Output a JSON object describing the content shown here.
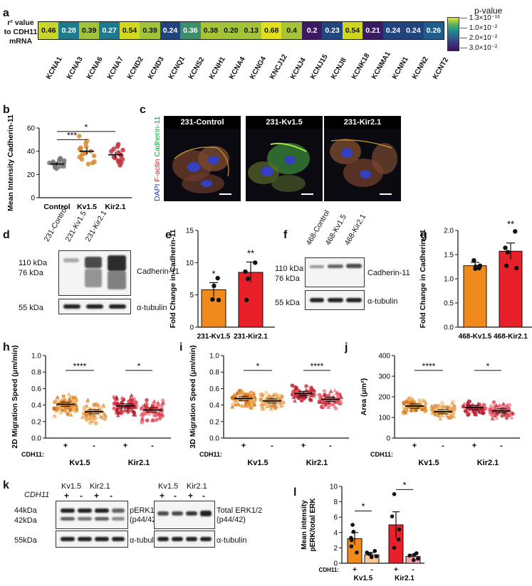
{
  "panels": {
    "a": "a",
    "b": "b",
    "c": "c",
    "d": "d",
    "e": "e",
    "f": "f",
    "g": "g",
    "h": "h",
    "i": "i",
    "j": "j",
    "k": "k",
    "l": "l"
  },
  "heatmap": {
    "row_label_1": "r² value",
    "row_label_2": "to CDH11",
    "row_label_3": "mRNA",
    "genes": [
      "KCNA1",
      "KCNA3",
      "KCNA6",
      "KCNA7",
      "KCND2",
      "KCND3",
      "KCNQ1",
      "KCNS2",
      "KCNH1",
      "KCNA4",
      "KCNG4",
      "KNCJ12",
      "KCNJ4",
      "KCNJ15",
      "KCNJ8",
      "KCNK18",
      "KCNMA1",
      "KCNN1",
      "KCNN2",
      "KCNT2"
    ],
    "values": [
      "0.46",
      "0.28",
      "0.39",
      "0.27",
      "0.54",
      "0.39",
      "0.24",
      "0.36",
      "0.38",
      "0.20",
      "0.13",
      "0.68",
      "0.4",
      "0.2",
      "0.23",
      "0.54",
      "0.21",
      "0.24",
      "0.24",
      "0.26"
    ],
    "colors": [
      "#c9d52a",
      "#1f7b8c",
      "#9fc33a",
      "#1f7a8f",
      "#d3d81e",
      "#9fc33a",
      "#21447f",
      "#3d8e6b",
      "#a7c437",
      "#9fc33a",
      "#a4c33b",
      "#e2de20",
      "#a7c437",
      "#3e1a63",
      "#23467f",
      "#cfd61e",
      "#3b1b64",
      "#21447f",
      "#21447f",
      "#1f5d8a"
    ],
    "legend_title": "p-value",
    "legend_ticks": [
      "1.3×10⁻¹⁶",
      "1.0×10⁻²",
      "2.0×10⁻²",
      "3.0×10⁻²"
    ]
  },
  "panel_b": {
    "ylabel": "Mean  Intensity Cadherin-11",
    "yticks": [
      "0",
      "20",
      "40",
      "60"
    ],
    "sig": [
      "***",
      "*"
    ],
    "chart_data": {
      "type": "scatter",
      "categories": [
        "Control",
        "Kv1.5",
        "Kir2.1"
      ],
      "ylim": [
        0,
        60
      ],
      "series": [
        {
          "name": "Control",
          "mean": 29,
          "sem": 1.5,
          "values": [
            29,
            30,
            27,
            28,
            33,
            31,
            32,
            29,
            26,
            25,
            30,
            34,
            28,
            31,
            27,
            30,
            29,
            33
          ]
        },
        {
          "name": "Kv1.5",
          "mean": 40,
          "sem": 3,
          "values": [
            53,
            47,
            44,
            42,
            40,
            38,
            36,
            41,
            35,
            33,
            30,
            31,
            43,
            49,
            29,
            37,
            39
          ]
        },
        {
          "name": "Kir2.1",
          "mean": 37,
          "sem": 2.5,
          "values": [
            46,
            44,
            41,
            39,
            37,
            35,
            33,
            32,
            31,
            30,
            28,
            40,
            36,
            42,
            34
          ]
        }
      ],
      "colors": [
        "#777777",
        "#d9892e",
        "#c0303a"
      ]
    }
  },
  "panel_c": {
    "ylabel_dapi": "DAPI",
    "ylabel_factin": "F-actin",
    "ylabel_cad": "Cadherin-11",
    "captions": [
      "231-Control",
      "231-Kv1.5",
      "231-Kir2.1"
    ]
  },
  "panel_d": {
    "lanes": [
      "231-Control",
      "231-Kv1.5",
      "231-Kir2.1"
    ],
    "mw_top_1": "110 kDa",
    "mw_top_2": "76 kDa",
    "mw_bottom": "55 kDa",
    "target": "Cadherin-11",
    "loading": "α-tubulin"
  },
  "panel_e": {
    "ylabel": "Fold Change in Cadherin-11",
    "yticks": [
      "0",
      "5",
      "10",
      "15"
    ],
    "sig": [
      "*",
      "**"
    ],
    "chart_data": {
      "type": "bar",
      "categories": [
        "231-Kv1.5",
        "231-Kir2.1"
      ],
      "values": [
        5.8,
        8.5
      ],
      "sem": [
        1.1,
        1.6
      ],
      "points": [
        [
          4.3,
          4.2,
          6.4,
          7.6
        ],
        [
          10.0,
          8.6,
          7.5,
          4.2
        ]
      ],
      "ylim": [
        0,
        15
      ],
      "colors": [
        "#f08a1c",
        "#e8202a"
      ]
    }
  },
  "panel_f": {
    "lanes": [
      "468-Control",
      "468-Kv1.5",
      "468-Kir2.1"
    ],
    "mw_top_1": "110 kDa",
    "mw_top_2": "76 kDa",
    "mw_bottom": "55 kDa",
    "target": "Cadherin-11",
    "loading": "α-tubulin"
  },
  "panel_g": {
    "ylabel": "Fold Change in Cadherin-11",
    "yticks": [
      "0.0",
      "0.5",
      "1.0",
      "1.5",
      "2.0"
    ],
    "sig": [
      "**"
    ],
    "chart_data": {
      "type": "bar",
      "categories": [
        "468-Kv1.5",
        "468-Kir2.1"
      ],
      "values": [
        1.27,
        1.57
      ],
      "sem": [
        0.07,
        0.17
      ],
      "points": [
        [
          1.38,
          1.27,
          1.21,
          1.22,
          1.25
        ],
        [
          1.98,
          1.64,
          1.55,
          1.27,
          1.22
        ]
      ],
      "ylim": [
        0,
        2.0
      ],
      "colors": [
        "#f08a1c",
        "#e8202a"
      ]
    }
  },
  "panel_h": {
    "ylabel": "2D Migration Speed (μm/min)",
    "yticks": [
      "0.0",
      "0.2",
      "0.4",
      "0.6",
      "0.8",
      "1.0"
    ],
    "row_label": "CDH11:",
    "signs": [
      "+",
      "-",
      "+",
      "-"
    ],
    "groups": [
      "Kv1.5",
      "Kir2.1"
    ],
    "sig": [
      "****",
      "*"
    ],
    "chart_data": {
      "type": "scatter",
      "categories": [
        "Kv1.5 +",
        "Kv1.5 -",
        "Kir2.1 +",
        "Kir2.1 -"
      ],
      "means": [
        0.41,
        0.32,
        0.39,
        0.34
      ],
      "ylim": [
        0,
        1.0
      ]
    }
  },
  "panel_i": {
    "ylabel": "3D Migration Speed (μm/min)",
    "yticks": [
      "0.0",
      "0.2",
      "0.4",
      "0.6",
      "0.8",
      "1.0"
    ],
    "row_label": "CDH11:",
    "signs": [
      "+",
      "-",
      "+",
      "-"
    ],
    "groups": [
      "Kv1.5",
      "Kir2.1"
    ],
    "sig": [
      "*",
      "****"
    ],
    "chart_data": {
      "type": "scatter",
      "categories": [
        "Kv1.5 +",
        "Kv1.5 -",
        "Kir2.1 +",
        "Kir2.1 -"
      ],
      "means": [
        0.48,
        0.45,
        0.54,
        0.47
      ],
      "ylim": [
        0,
        1.0
      ]
    }
  },
  "panel_j": {
    "ylabel": "Area (μm²)",
    "yticks": [
      "0",
      "100",
      "200",
      "300",
      "400"
    ],
    "row_label": "CDH11:",
    "signs": [
      "+",
      "-",
      "+",
      "-"
    ],
    "groups": [
      "Kv1.5",
      "Kir2.1"
    ],
    "sig": [
      "****",
      "*"
    ],
    "chart_data": {
      "type": "scatter",
      "categories": [
        "Kv1.5 +",
        "Kv1.5 -",
        "Kir2.1 +",
        "Kir2.1 -"
      ],
      "means": [
        155,
        128,
        148,
        132
      ],
      "ylim": [
        0,
        400
      ]
    }
  },
  "panel_k": {
    "left_groups": [
      "Kv1.5",
      "Kir2.1"
    ],
    "right_groups": [
      "Kv1.5",
      "Kir2.1"
    ],
    "row_label": "CDH11",
    "signs": [
      "+",
      "-",
      "+",
      "-"
    ],
    "mw_top_1": "44kDa",
    "mw_top_2": "42kDa",
    "mw_bottom": "55kDa",
    "left_target_1": "pERK1/2",
    "left_target_2": "(p44/42)",
    "right_target_1": "Total ERK1/2",
    "right_target_2": "(p44/42)",
    "loading": "α-tubulin"
  },
  "panel_l": {
    "ylabel_1": "Mean intensity",
    "ylabel_2": "pERK/total ERK",
    "yticks": [
      "0",
      "2",
      "4",
      "6",
      "8",
      "10"
    ],
    "row_label": "CDH11:",
    "signs": [
      "+",
      "-",
      "+",
      "-"
    ],
    "groups": [
      "Kv1.5",
      "Kir2.1"
    ],
    "sig": [
      "*",
      "*"
    ],
    "chart_data": {
      "type": "bar",
      "categories": [
        "Kv1.5 +",
        "Kv1.5 -",
        "Kir2.1 +",
        "Kir2.1 -"
      ],
      "values": [
        3.2,
        1.1,
        5.0,
        0.9
      ],
      "sem": [
        0.8,
        0.3,
        1.7,
        0.25
      ],
      "points": [
        [
          5.0,
          4.1,
          3.3,
          2.2,
          1.4,
          3.0
        ],
        [
          1.6,
          1.2,
          0.8,
          0.9,
          1.4
        ],
        [
          9.0,
          6.1,
          4.4,
          3.1,
          2.0
        ],
        [
          1.3,
          0.6,
          1.0,
          0.4,
          1.1
        ]
      ],
      "ylim": [
        0,
        10
      ],
      "colors": [
        "#f08a1c",
        "#f8c899",
        "#e8202a",
        "#f7a7a7"
      ]
    }
  }
}
